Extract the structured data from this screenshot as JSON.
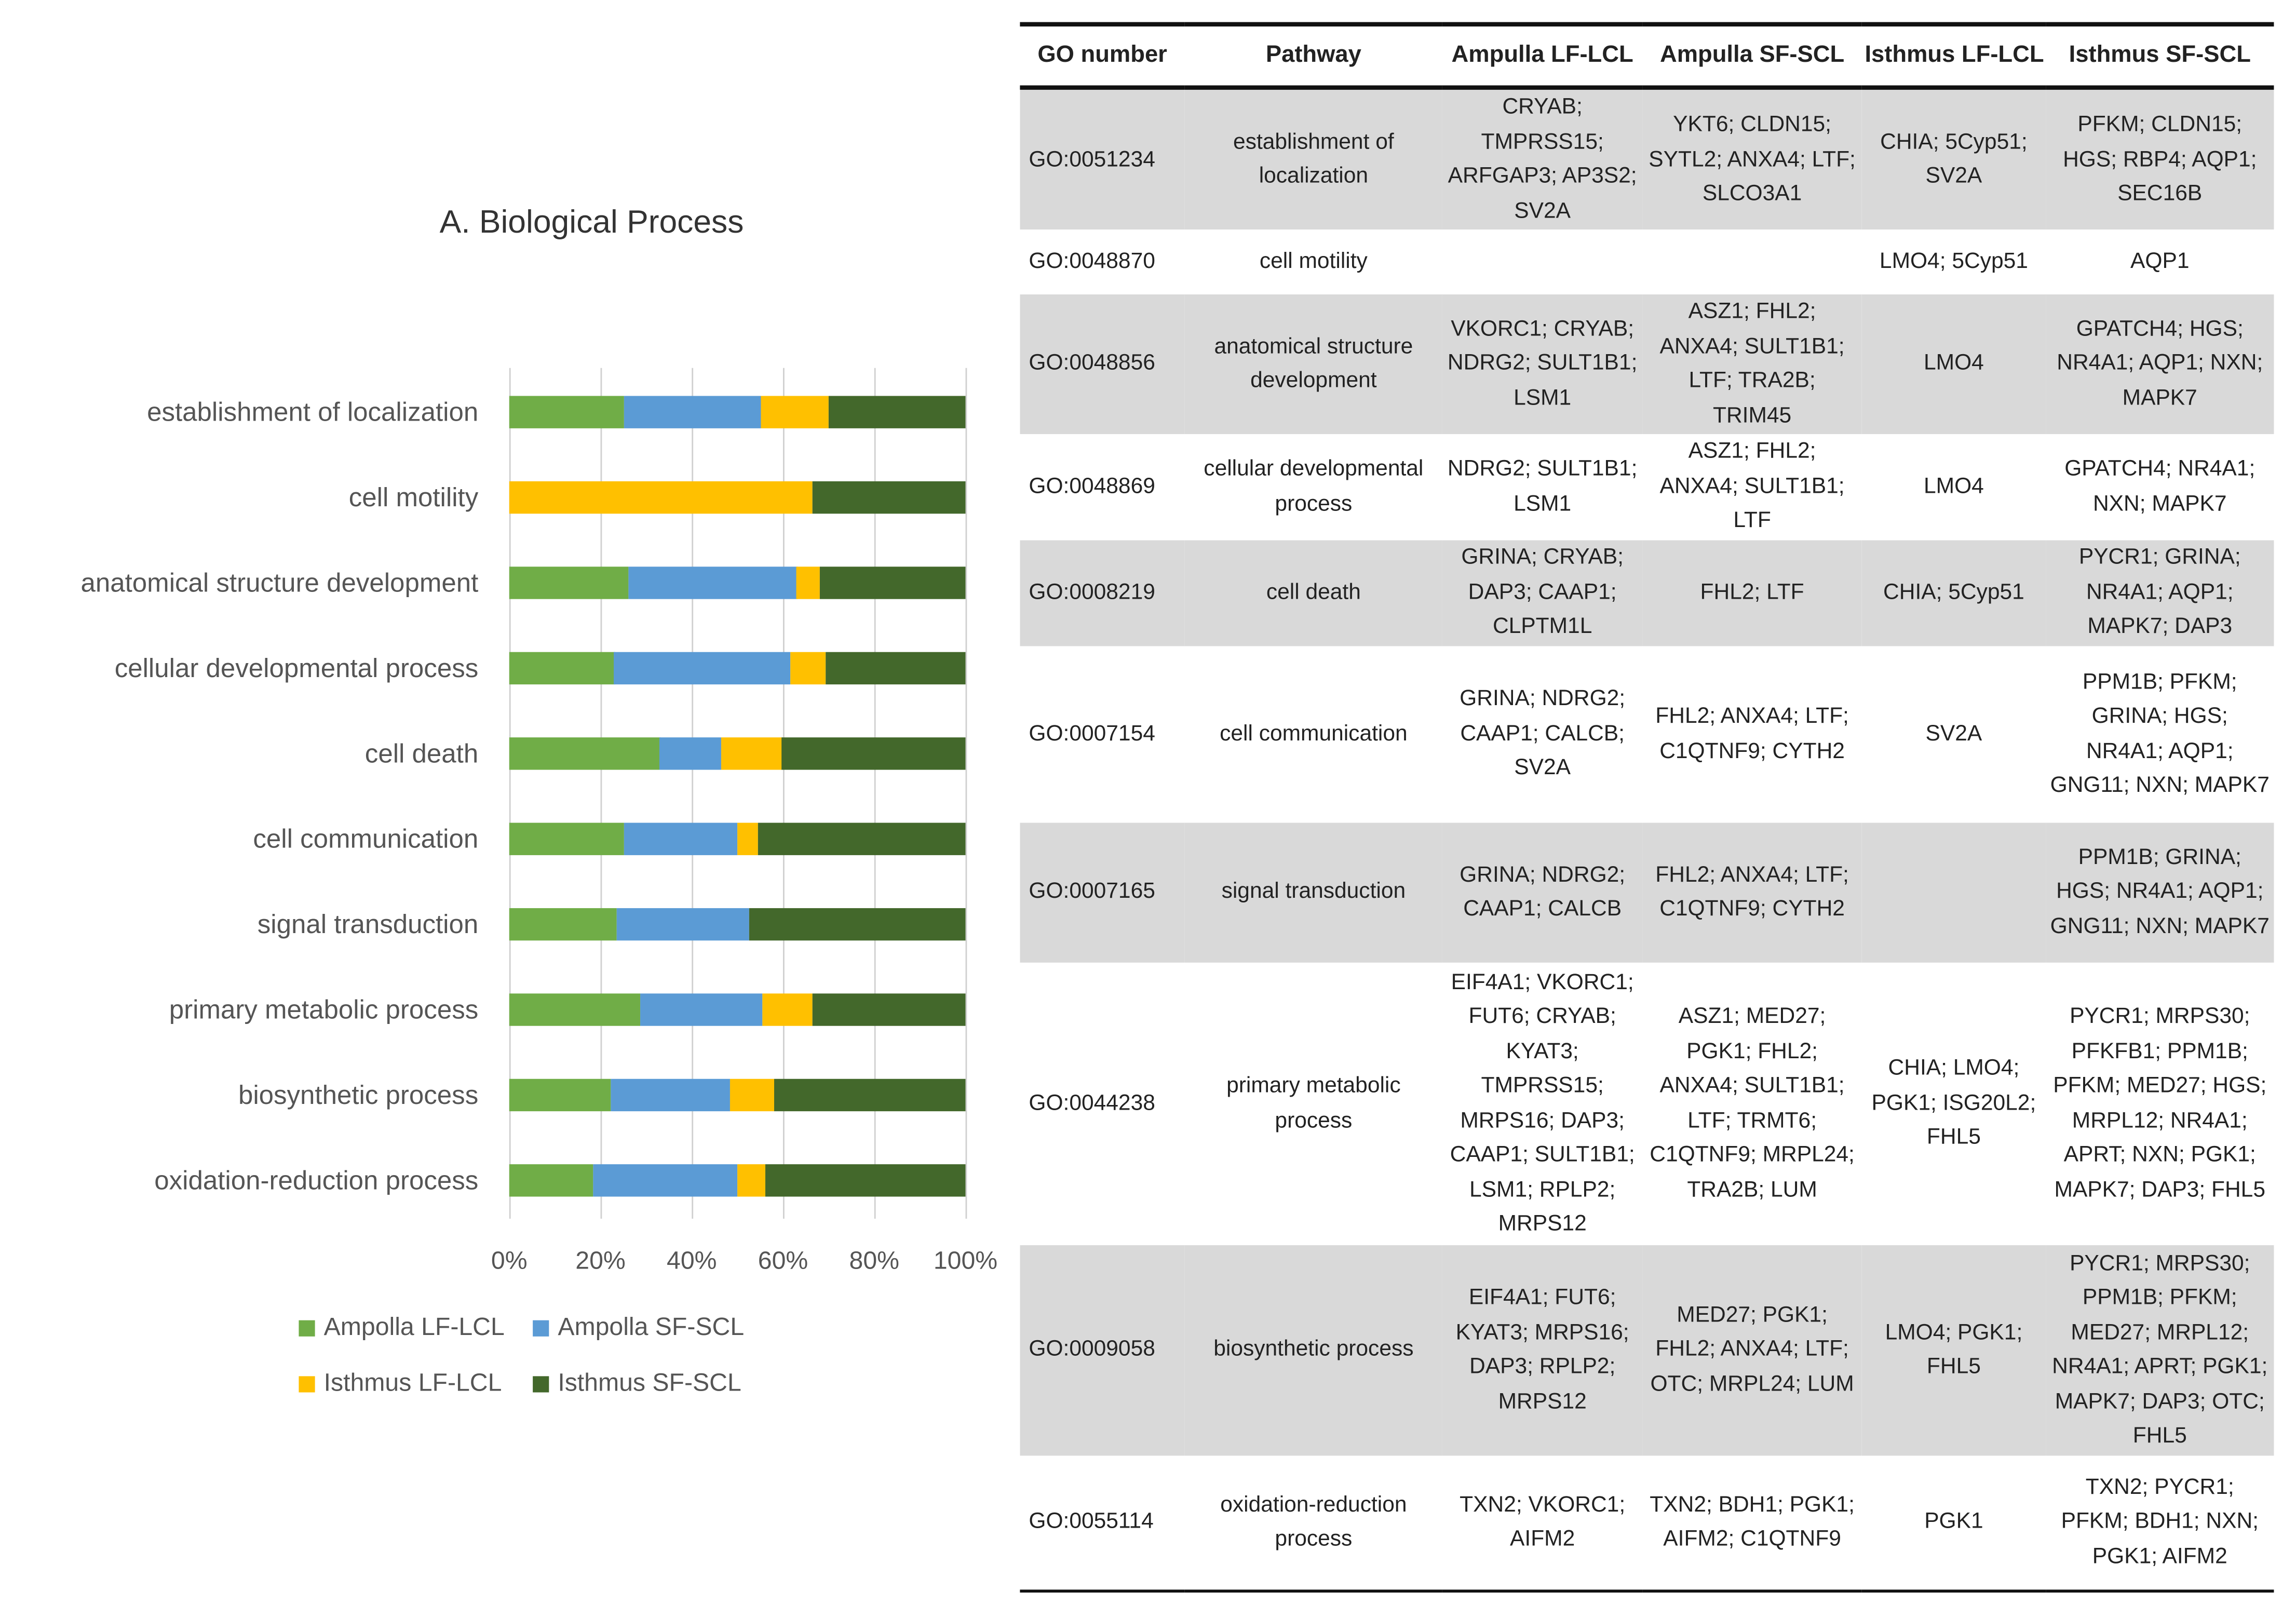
{
  "chart_data": {
    "type": "bar",
    "orientation": "horizontal-stacked-100",
    "title": "A. Biological Process",
    "categories": [
      "establishment of localization",
      "cell motility",
      "anatomical structure development",
      "cellular developmental process",
      "cell death",
      "cell communication",
      "signal transduction",
      "primary metabolic process",
      "biosynthetic process",
      "oxidation-reduction process"
    ],
    "series": [
      {
        "name": "Ampolla LF-LCL",
        "color": "#70ad47",
        "values": [
          25,
          0,
          26,
          23,
          33,
          25,
          23.5,
          28.7,
          22.3,
          18.4
        ]
      },
      {
        "name": "Ampolla SF-SCL",
        "color": "#5b9bd5",
        "values": [
          30,
          0,
          37,
          38.6,
          13.3,
          25,
          29,
          26.8,
          26.1,
          31.6
        ]
      },
      {
        "name": "Isthmus LF-LCL",
        "color": "#ffc000",
        "values": [
          15,
          66.5,
          5,
          7.7,
          13.5,
          4.5,
          0,
          11,
          9.7,
          6
        ]
      },
      {
        "name": "Isthmus SF-SCL",
        "color": "#43682b",
        "values": [
          30,
          33.5,
          32,
          30.7,
          40.2,
          45.5,
          47.5,
          33.5,
          41.9,
          44
        ]
      }
    ],
    "xlim": [
      0,
      100
    ],
    "xticks": [
      "0%",
      "20%",
      "40%",
      "60%",
      "80%",
      "100%"
    ],
    "grid": true,
    "legend_position": "bottom"
  },
  "table": {
    "headers": [
      "GO number",
      "Pathway",
      "Ampulla LF-LCL",
      "Ampulla SF-SCL",
      "Isthmus LF-LCL",
      "Isthmus SF-SCL"
    ],
    "rows": [
      [
        "GO:0051234",
        "establishment of localization",
        "CRYAB; TMPRSS15; ARFGAP3; AP3S2; SV2A",
        "YKT6; CLDN15; SYTL2; ANXA4; LTF; SLCO3A1",
        "CHIA; 5Cyp51; SV2A",
        "PFKM; CLDN15; HGS; RBP4; AQP1; SEC16B"
      ],
      [
        "GO:0048870",
        "cell motility",
        "",
        "",
        "LMO4; 5Cyp51",
        "AQP1"
      ],
      [
        "GO:0048856",
        "anatomical structure development",
        "VKORC1; CRYAB; NDRG2; SULT1B1; LSM1",
        "ASZ1; FHL2; ANXA4; SULT1B1; LTF; TRA2B; TRIM45",
        "LMO4",
        "GPATCH4; HGS; NR4A1; AQP1; NXN; MAPK7"
      ],
      [
        "GO:0048869",
        "cellular developmental process",
        "NDRG2; SULT1B1; LSM1",
        "ASZ1; FHL2; ANXA4; SULT1B1; LTF",
        "LMO4",
        "GPATCH4; NR4A1; NXN; MAPK7"
      ],
      [
        "GO:0008219",
        "cell death",
        "GRINA; CRYAB; DAP3; CAAP1; CLPTM1L",
        "FHL2; LTF",
        "CHIA; 5Cyp51",
        "PYCR1; GRINA; NR4A1; AQP1; MAPK7; DAP3"
      ],
      [
        "GO:0007154",
        "cell communication",
        "GRINA; NDRG2; CAAP1; CALCB; SV2A",
        "FHL2; ANXA4; LTF; C1QTNF9; CYTH2",
        "SV2A",
        "PPM1B; PFKM; GRINA; HGS; NR4A1; AQP1; GNG11; NXN; MAPK7"
      ],
      [
        "GO:0007165",
        "signal transduction",
        "GRINA; NDRG2; CAAP1; CALCB",
        "FHL2; ANXA4; LTF; C1QTNF9; CYTH2",
        "",
        "PPM1B; GRINA; HGS; NR4A1; AQP1; GNG11; NXN; MAPK7"
      ],
      [
        "GO:0044238",
        "primary metabolic process",
        "EIF4A1; VKORC1; FUT6; CRYAB; KYAT3; TMPRSS15; MRPS16; DAP3; CAAP1; SULT1B1; LSM1; RPLP2; MRPS12",
        "ASZ1; MED27; PGK1; FHL2; ANXA4; SULT1B1; LTF; TRMT6; C1QTNF9; MRPL24; TRA2B; LUM",
        "CHIA; LMO4; PGK1; ISG20L2; FHL5",
        "PYCR1; MRPS30; PFKFB1; PPM1B; PFKM; MED27; HGS; MRPL12; NR4A1; APRT; NXN; PGK1; MAPK7; DAP3; FHL5"
      ],
      [
        "GO:0009058",
        "biosynthetic process",
        "EIF4A1; FUT6; KYAT3; MRPS16; DAP3; RPLP2; MRPS12",
        "MED27; PGK1; FHL2; ANXA4; LTF; OTC; MRPL24; LUM",
        "LMO4; PGK1; FHL5",
        "PYCR1; MRPS30; PPM1B; PFKM; MED27; MRPL12; NR4A1; APRT; PGK1; MAPK7; DAP3; OTC; FHL5"
      ],
      [
        "GO:0055114",
        "oxidation-reduction process",
        "TXN2; VKORC1; AIFM2",
        "TXN2; BDH1; PGK1; AIFM2; C1QTNF9",
        "PGK1",
        "TXN2; PYCR1; PFKM; BDH1; NXN; PGK1; AIFM2"
      ]
    ]
  }
}
